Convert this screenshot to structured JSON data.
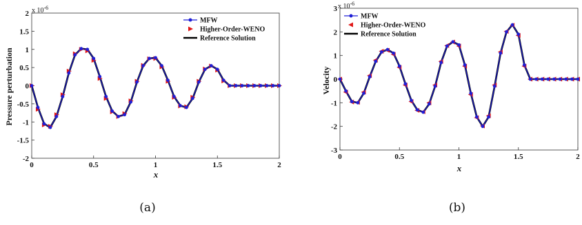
{
  "chart_data": [
    {
      "type": "line",
      "caption": "(a)",
      "xlabel": "x",
      "ylabel": "Pressure perturbation",
      "exponent_label": "x 10",
      "exponent_power": "-6",
      "xlim": [
        0,
        2
      ],
      "ylim": [
        -2,
        2
      ],
      "x_ticks": [
        "0",
        "0.5",
        "1",
        "1.5",
        "2"
      ],
      "y_ticks": [
        "2",
        "1.5",
        "1",
        "0.5",
        "0",
        "-0.5",
        "-1",
        "-1.5",
        "-2"
      ],
      "series": [
        {
          "name": "MFW",
          "color": "#1f1fd6",
          "marker": "circle",
          "x": [
            0,
            0.05,
            0.1,
            0.15,
            0.2,
            0.25,
            0.3,
            0.35,
            0.4,
            0.45,
            0.5,
            0.55,
            0.6,
            0.65,
            0.7,
            0.75,
            0.8,
            0.85,
            0.9,
            0.95,
            1.0,
            1.05,
            1.1,
            1.15,
            1.2,
            1.25,
            1.3,
            1.35,
            1.4,
            1.45,
            1.5,
            1.55,
            1.6,
            1.65,
            1.7,
            1.75,
            1.8,
            1.85,
            1.9,
            1.95,
            2.0
          ],
          "y": [
            0,
            -0.6,
            -1.05,
            -1.15,
            -0.85,
            -0.3,
            0.35,
            0.85,
            1.02,
            1.0,
            0.75,
            0.25,
            -0.3,
            -0.7,
            -0.85,
            -0.8,
            -0.45,
            0.1,
            0.55,
            0.75,
            0.77,
            0.55,
            0.15,
            -0.3,
            -0.55,
            -0.6,
            -0.35,
            0.1,
            0.45,
            0.55,
            0.45,
            0.15,
            0.0,
            0,
            0,
            0,
            0,
            0,
            0,
            0,
            0
          ]
        },
        {
          "name": "Higher-Order-WENO",
          "color": "#e01818",
          "marker": "triangle-right",
          "x": [
            0,
            0.05,
            0.1,
            0.15,
            0.2,
            0.25,
            0.3,
            0.35,
            0.4,
            0.45,
            0.5,
            0.55,
            0.6,
            0.65,
            0.7,
            0.75,
            0.8,
            0.85,
            0.9,
            0.95,
            1.0,
            1.05,
            1.1,
            1.15,
            1.2,
            1.25,
            1.3,
            1.35,
            1.4,
            1.45,
            1.5,
            1.55,
            1.6,
            1.65,
            1.7,
            1.75,
            1.8,
            1.85,
            1.9,
            1.95,
            2.0
          ],
          "y": [
            0,
            -0.65,
            -1.08,
            -1.12,
            -0.8,
            -0.25,
            0.4,
            0.88,
            1.0,
            0.96,
            0.7,
            0.2,
            -0.35,
            -0.72,
            -0.85,
            -0.77,
            -0.42,
            0.12,
            0.56,
            0.74,
            0.75,
            0.52,
            0.12,
            -0.32,
            -0.56,
            -0.58,
            -0.32,
            0.12,
            0.46,
            0.54,
            0.43,
            0.13,
            0.0,
            0,
            0,
            0,
            0,
            0,
            0,
            0,
            0
          ]
        },
        {
          "name": "Reference Solution",
          "color": "#000000",
          "marker": "none",
          "x": [
            0,
            0.05,
            0.1,
            0.15,
            0.2,
            0.25,
            0.3,
            0.35,
            0.4,
            0.45,
            0.5,
            0.55,
            0.6,
            0.65,
            0.7,
            0.75,
            0.8,
            0.85,
            0.9,
            0.95,
            1.0,
            1.05,
            1.1,
            1.15,
            1.2,
            1.25,
            1.3,
            1.35,
            1.4,
            1.45,
            1.5,
            1.55,
            1.6,
            1.65,
            1.7,
            1.75,
            1.8,
            1.85,
            1.9,
            1.95,
            2.0
          ],
          "y": [
            0,
            -0.6,
            -1.05,
            -1.15,
            -0.85,
            -0.3,
            0.35,
            0.85,
            1.02,
            1.0,
            0.75,
            0.25,
            -0.3,
            -0.7,
            -0.85,
            -0.8,
            -0.45,
            0.1,
            0.55,
            0.75,
            0.77,
            0.55,
            0.15,
            -0.3,
            -0.55,
            -0.6,
            -0.35,
            0.1,
            0.45,
            0.55,
            0.45,
            0.15,
            0.0,
            0,
            0,
            0,
            0,
            0,
            0,
            0,
            0
          ]
        }
      ],
      "legend_position": "top-right"
    },
    {
      "type": "line",
      "caption": "(b)",
      "xlabel": "x",
      "ylabel": "Velocity",
      "exponent_label": "x 10",
      "exponent_power": "-6",
      "xlim": [
        0,
        2
      ],
      "ylim": [
        -3,
        3
      ],
      "x_ticks": [
        "0",
        "0.5",
        "1",
        "1.5",
        "2"
      ],
      "y_ticks": [
        "3",
        "2",
        "1",
        "0",
        "-1",
        "-2",
        "-3"
      ],
      "series": [
        {
          "name": "MFW",
          "color": "#1f1fd6",
          "marker": "circle",
          "x": [
            0,
            0.05,
            0.1,
            0.15,
            0.2,
            0.25,
            0.3,
            0.35,
            0.4,
            0.45,
            0.5,
            0.55,
            0.6,
            0.65,
            0.7,
            0.75,
            0.8,
            0.85,
            0.9,
            0.95,
            1.0,
            1.05,
            1.1,
            1.15,
            1.2,
            1.25,
            1.3,
            1.35,
            1.4,
            1.45,
            1.5,
            1.55,
            1.6,
            1.65,
            1.7,
            1.75,
            1.8,
            1.85,
            1.9,
            1.95,
            2.0
          ],
          "y": [
            0,
            -0.5,
            -0.95,
            -1.0,
            -0.6,
            0.1,
            0.75,
            1.15,
            1.25,
            1.1,
            0.55,
            -0.2,
            -0.9,
            -1.3,
            -1.4,
            -1.05,
            -0.3,
            0.7,
            1.4,
            1.58,
            1.45,
            0.6,
            -0.6,
            -1.6,
            -2.0,
            -1.6,
            -0.3,
            1.1,
            2.0,
            2.3,
            1.9,
            0.6,
            0.0,
            0,
            0,
            0,
            0,
            0,
            0,
            0,
            0
          ]
        },
        {
          "name": "Higher-Order-WENO",
          "color": "#e01818",
          "marker": "triangle-left",
          "x": [
            0,
            0.05,
            0.1,
            0.15,
            0.2,
            0.25,
            0.3,
            0.35,
            0.4,
            0.45,
            0.5,
            0.55,
            0.6,
            0.65,
            0.7,
            0.75,
            0.8,
            0.85,
            0.9,
            0.95,
            1.0,
            1.05,
            1.1,
            1.15,
            1.2,
            1.25,
            1.3,
            1.35,
            1.4,
            1.45,
            1.5,
            1.55,
            1.6,
            1.65,
            1.7,
            1.75,
            1.8,
            1.85,
            1.9,
            1.95,
            2.0
          ],
          "y": [
            0,
            -0.55,
            -0.97,
            -0.98,
            -0.55,
            0.15,
            0.8,
            1.18,
            1.22,
            1.05,
            0.5,
            -0.25,
            -0.95,
            -1.32,
            -1.38,
            -1.0,
            -0.25,
            0.75,
            1.42,
            1.57,
            1.4,
            0.55,
            -0.65,
            -1.63,
            -1.98,
            -1.55,
            -0.25,
            1.15,
            2.02,
            2.28,
            1.85,
            0.55,
            0.0,
            0,
            0,
            0,
            0,
            0,
            0,
            0,
            0
          ]
        },
        {
          "name": "Reference Solution",
          "color": "#000000",
          "marker": "none",
          "x": [
            0,
            0.05,
            0.1,
            0.15,
            0.2,
            0.25,
            0.3,
            0.35,
            0.4,
            0.45,
            0.5,
            0.55,
            0.6,
            0.65,
            0.7,
            0.75,
            0.8,
            0.85,
            0.9,
            0.95,
            1.0,
            1.05,
            1.1,
            1.15,
            1.2,
            1.25,
            1.3,
            1.35,
            1.4,
            1.45,
            1.5,
            1.55,
            1.6,
            1.65,
            1.7,
            1.75,
            1.8,
            1.85,
            1.9,
            1.95,
            2.0
          ],
          "y": [
            0,
            -0.5,
            -0.95,
            -1.0,
            -0.6,
            0.1,
            0.75,
            1.15,
            1.25,
            1.1,
            0.55,
            -0.2,
            -0.9,
            -1.3,
            -1.4,
            -1.05,
            -0.3,
            0.7,
            1.4,
            1.58,
            1.45,
            0.6,
            -0.6,
            -1.6,
            -2.0,
            -1.6,
            -0.3,
            1.1,
            2.0,
            2.3,
            1.9,
            0.6,
            0.0,
            0,
            0,
            0,
            0,
            0,
            0,
            0,
            0
          ]
        }
      ],
      "legend_position": "top-left"
    }
  ]
}
